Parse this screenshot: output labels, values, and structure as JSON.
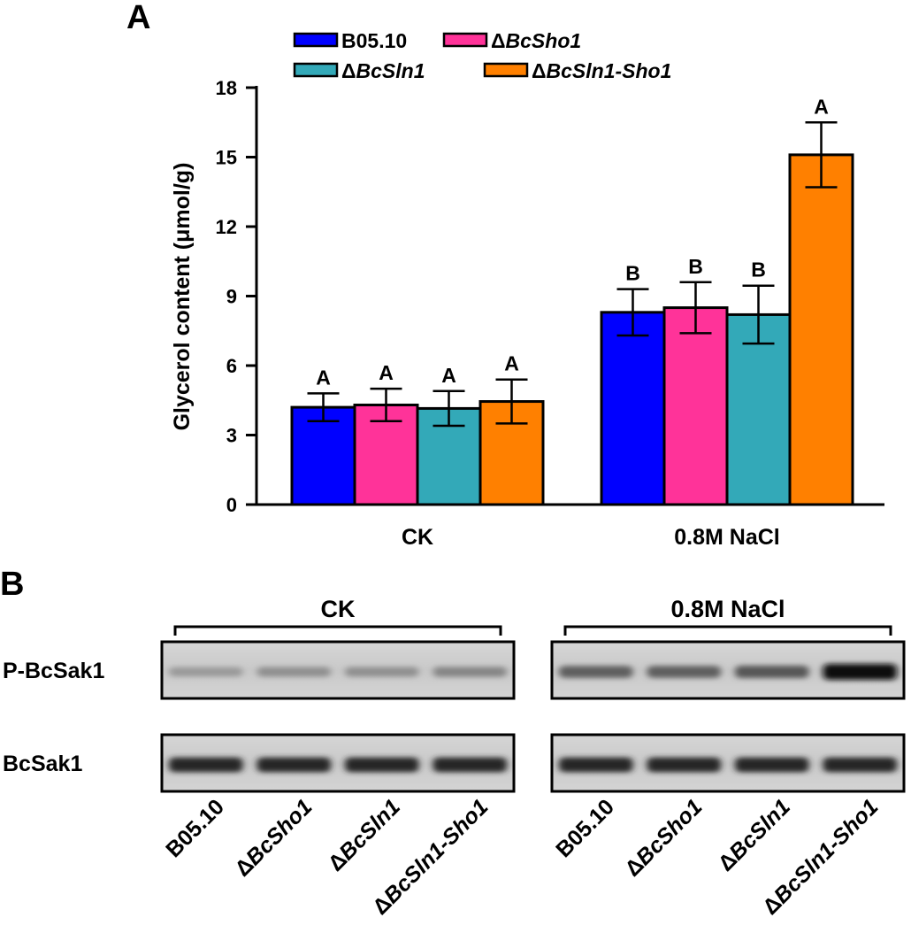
{
  "panels": {
    "a": "A",
    "b": "B"
  },
  "chart_data": {
    "type": "bar",
    "title": "",
    "xlabel": "",
    "ylabel": "Glycerol content (μmol/g)",
    "ylim": [
      0,
      18
    ],
    "yticks": [
      0,
      3,
      6,
      9,
      12,
      15,
      18
    ],
    "categories": [
      "CK",
      "0.8M NaCl"
    ],
    "series": [
      {
        "name": "B05.10",
        "prefix": "B05.10",
        "italic": "",
        "color": "#0000ff",
        "values": [
          4.2,
          8.3
        ],
        "errors": [
          0.6,
          1.0
        ],
        "labels": [
          "A",
          "B"
        ]
      },
      {
        "name": "ΔBcSho1",
        "prefix": "Δ",
        "italic": "BcSho1",
        "color": "#ff3399",
        "values": [
          4.3,
          8.5
        ],
        "errors": [
          0.7,
          1.1
        ],
        "labels": [
          "A",
          "B"
        ]
      },
      {
        "name": "ΔBcSln1",
        "prefix": "Δ",
        "italic": "BcSln1",
        "color": "#33a9b8",
        "values": [
          4.15,
          8.2
        ],
        "errors": [
          0.75,
          1.25
        ],
        "labels": [
          "A",
          "B"
        ]
      },
      {
        "name": "ΔBcSln1-Sho1",
        "prefix": "Δ",
        "italic": "BcSln1-Sho1",
        "color": "#ff8000",
        "values": [
          4.45,
          15.1
        ],
        "errors": [
          0.95,
          1.4
        ],
        "labels": [
          "A",
          "A"
        ]
      }
    ],
    "legend_position": "top"
  },
  "blot": {
    "conditions": [
      "CK",
      "0.8M NaCl"
    ],
    "rows": [
      {
        "label": "P-BcSak1",
        "intensities": [
          [
            0.25,
            0.3,
            0.3,
            0.35
          ],
          [
            0.55,
            0.55,
            0.6,
            1.0
          ]
        ]
      },
      {
        "label": "BcSak1",
        "intensities": [
          [
            0.85,
            0.85,
            0.85,
            0.85
          ],
          [
            0.85,
            0.85,
            0.85,
            0.85
          ]
        ]
      }
    ],
    "lanes": [
      {
        "prefix": "B05.10",
        "italic": ""
      },
      {
        "prefix": "Δ",
        "italic": "BcSho1"
      },
      {
        "prefix": "Δ",
        "italic": "BcSln1"
      },
      {
        "prefix": "Δ",
        "italic": "BcSln1-Sho1"
      }
    ]
  }
}
